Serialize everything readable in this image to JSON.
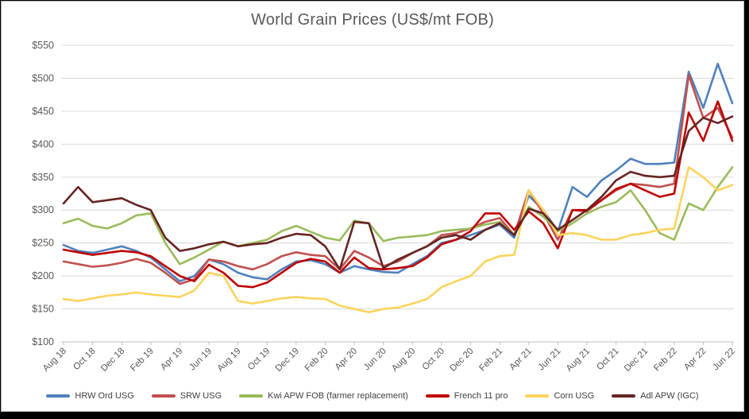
{
  "chart_data": {
    "type": "line",
    "title": "World Grain Prices (US$/mt FOB)",
    "xlabel": "",
    "ylabel": "",
    "ylim": [
      100,
      550
    ],
    "ytick_step": 50,
    "ytick_prefix": "$",
    "grid": "horizontal",
    "legend_position": "bottom",
    "x_tick_every": 2,
    "x": [
      "Aug 18",
      "Sep 18",
      "Oct 18",
      "Nov 18",
      "Dec 18",
      "Jan 19",
      "Feb 19",
      "Mar 19",
      "Apr 19",
      "May 19",
      "Jun 19",
      "Jul 19",
      "Aug 19",
      "Sep 19",
      "Oct 19",
      "Nov 19",
      "Dec 19",
      "Jan 20",
      "Feb 20",
      "Mar 20",
      "Apr 20",
      "May 20",
      "Jun 20",
      "Jul 20",
      "Aug 20",
      "Sep 20",
      "Oct 20",
      "Nov 20",
      "Dec 20",
      "Jan 21",
      "Feb 21",
      "Mar 21",
      "Apr 21",
      "May 21",
      "Jun 21",
      "Jul 21",
      "Aug 21",
      "Sep 21",
      "Oct 21",
      "Nov 21",
      "Dec 21",
      "Jan 22",
      "Feb 22",
      "Mar 22",
      "Apr 22",
      "May 22",
      "Jun 22"
    ],
    "x_tick_labels": [
      "Aug 18",
      "Oct 18",
      "Dec 18",
      "Feb 19",
      "Apr 19",
      "Jun 19",
      "Aug 19",
      "Oct 19",
      "Dec 19",
      "Feb 20",
      "Apr 20",
      "Jun 20",
      "Aug 20",
      "Oct 20",
      "Dec 20",
      "Feb 21",
      "Apr 21",
      "Jun 21",
      "Aug 21",
      "Oct 21",
      "Dec 21",
      "Feb 22",
      "Apr 22"
    ],
    "y_tick_labels": [
      "$550",
      "$500",
      "$450",
      "$400",
      "$350",
      "$300",
      "$250",
      "$200",
      "$150",
      "$100"
    ],
    "series": [
      {
        "name": "HRW Ord USG",
        "color": "#4F81BD",
        "values": [
          247,
          238,
          235,
          240,
          245,
          238,
          228,
          210,
          192,
          200,
          225,
          218,
          205,
          198,
          195,
          210,
          222,
          224,
          218,
          205,
          215,
          210,
          206,
          205,
          218,
          230,
          250,
          255,
          262,
          270,
          278,
          258,
          322,
          300,
          268,
          335,
          320,
          345,
          360,
          378,
          370,
          370,
          372,
          510,
          455,
          522,
          462
        ]
      },
      {
        "name": "SRW USG",
        "color": "#C0504D",
        "values": [
          222,
          218,
          214,
          216,
          220,
          226,
          220,
          205,
          188,
          195,
          225,
          222,
          215,
          210,
          218,
          230,
          236,
          232,
          230,
          210,
          238,
          228,
          215,
          222,
          235,
          245,
          262,
          265,
          272,
          282,
          288,
          262,
          330,
          295,
          255,
          300,
          298,
          315,
          330,
          340,
          338,
          335,
          340,
          505,
          440,
          455,
          410
        ]
      },
      {
        "name": "Kwi APW FOB (farmer replacement)",
        "color": "#9BBB59",
        "values": [
          280,
          287,
          276,
          272,
          280,
          292,
          295,
          250,
          218,
          228,
          240,
          252,
          245,
          250,
          255,
          268,
          276,
          267,
          258,
          254,
          284,
          280,
          253,
          258,
          260,
          262,
          268,
          270,
          272,
          278,
          282,
          262,
          305,
          290,
          268,
          280,
          295,
          305,
          312,
          330,
          300,
          265,
          255,
          310,
          300,
          335,
          365
        ]
      },
      {
        "name": "French 11 pro",
        "color": "#C00000",
        "values": [
          240,
          236,
          232,
          235,
          238,
          236,
          230,
          215,
          200,
          192,
          217,
          205,
          185,
          183,
          190,
          205,
          220,
          226,
          222,
          205,
          228,
          212,
          210,
          212,
          215,
          228,
          248,
          255,
          268,
          295,
          295,
          270,
          298,
          280,
          242,
          300,
          300,
          315,
          332,
          340,
          330,
          320,
          325,
          448,
          405,
          465,
          405
        ]
      },
      {
        "name": "Corn USG",
        "color": "#FBD35C",
        "values": [
          165,
          162,
          166,
          170,
          172,
          175,
          172,
          170,
          168,
          178,
          205,
          200,
          162,
          158,
          162,
          166,
          168,
          166,
          165,
          155,
          150,
          145,
          150,
          152,
          158,
          165,
          183,
          192,
          200,
          222,
          230,
          232,
          330,
          300,
          262,
          265,
          262,
          255,
          255,
          262,
          265,
          270,
          272,
          365,
          350,
          330,
          338
        ]
      },
      {
        "name": "Adl APW (IGC)",
        "color": "#652423",
        "values": [
          310,
          335,
          312,
          315,
          318,
          308,
          300,
          258,
          238,
          242,
          248,
          252,
          245,
          248,
          250,
          258,
          264,
          262,
          245,
          210,
          282,
          280,
          212,
          225,
          235,
          245,
          258,
          262,
          255,
          270,
          280,
          262,
          302,
          295,
          270,
          285,
          300,
          320,
          345,
          358,
          352,
          350,
          352,
          420,
          440,
          432,
          442
        ]
      }
    ],
    "style": {
      "gridline_color": "#D9D9D9",
      "axis_color": "#BFBFBF",
      "tick_label_color": "#595959",
      "title_color": "#595959",
      "legend_text_color": "#404040",
      "line_width": 2.6
    }
  }
}
